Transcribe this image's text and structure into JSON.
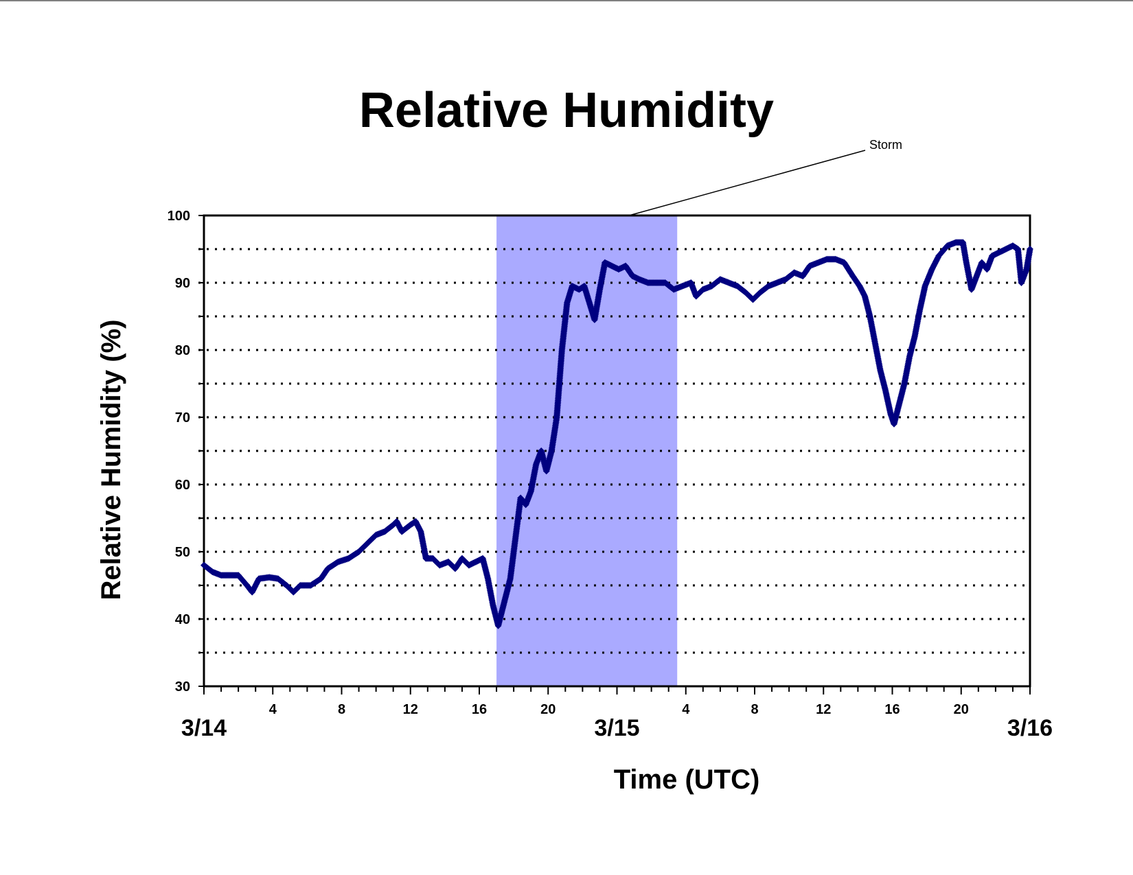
{
  "chart_data": {
    "type": "scatter",
    "title": "Relative Humidity",
    "xlabel": "Time (UTC)",
    "ylabel": "Relative Humidity (%)",
    "ylim": [
      30,
      100
    ],
    "y_ticks": [
      30,
      40,
      50,
      60,
      70,
      80,
      90,
      100
    ],
    "grid": "dotted horizontal lines every 5",
    "x_range_hours": [
      0,
      48
    ],
    "x_hour_labels": [
      {
        "hour": 4,
        "label": "4"
      },
      {
        "hour": 8,
        "label": "8"
      },
      {
        "hour": 12,
        "label": "12"
      },
      {
        "hour": 16,
        "label": "16"
      },
      {
        "hour": 20,
        "label": "20"
      },
      {
        "hour": 28,
        "label": "4"
      },
      {
        "hour": 32,
        "label": "8"
      },
      {
        "hour": 36,
        "label": "12"
      },
      {
        "hour": 40,
        "label": "16"
      },
      {
        "hour": 44,
        "label": "20"
      }
    ],
    "x_date_labels": [
      {
        "hour": 0,
        "label": "3/14"
      },
      {
        "hour": 24,
        "label": "3/15"
      },
      {
        "hour": 48,
        "label": "3/16"
      }
    ],
    "shaded_region": {
      "label": "Storm",
      "x_start_hour": 17,
      "x_end_hour": 27.5,
      "color": "#aaaaff"
    },
    "annotation": {
      "text": "Storm"
    },
    "marker_color": "#000080",
    "series": [
      {
        "points": [
          [
            0,
            48
          ],
          [
            0.5,
            47
          ],
          [
            1,
            46.5
          ],
          [
            1.5,
            46.5
          ],
          [
            2,
            46.5
          ],
          [
            2.5,
            45
          ],
          [
            2.8,
            44
          ],
          [
            3.2,
            46
          ],
          [
            3.8,
            46.2
          ],
          [
            4.3,
            46
          ],
          [
            4.8,
            45
          ],
          [
            5.2,
            44
          ],
          [
            5.6,
            45
          ],
          [
            6.2,
            45
          ],
          [
            6.8,
            46
          ],
          [
            7.2,
            47.5
          ],
          [
            7.8,
            48.5
          ],
          [
            8.4,
            49
          ],
          [
            9,
            50
          ],
          [
            9.6,
            51.5
          ],
          [
            10,
            52.5
          ],
          [
            10.5,
            53
          ],
          [
            11,
            54
          ],
          [
            11.2,
            54.5
          ],
          [
            11.5,
            53
          ],
          [
            12,
            54
          ],
          [
            12.3,
            54.5
          ],
          [
            12.6,
            53
          ],
          [
            12.9,
            49
          ],
          [
            13.3,
            49
          ],
          [
            13.7,
            48
          ],
          [
            14.2,
            48.5
          ],
          [
            14.6,
            47.5
          ],
          [
            15,
            49
          ],
          [
            15.4,
            48
          ],
          [
            15.8,
            48.5
          ],
          [
            16.2,
            49
          ],
          [
            16.5,
            46
          ],
          [
            16.8,
            42
          ],
          [
            17.1,
            39
          ],
          [
            17.4,
            42
          ],
          [
            17.8,
            46
          ],
          [
            18.1,
            52
          ],
          [
            18.4,
            58
          ],
          [
            18.7,
            57
          ],
          [
            19,
            59
          ],
          [
            19.3,
            63
          ],
          [
            19.6,
            65
          ],
          [
            19.9,
            62
          ],
          [
            20.2,
            65
          ],
          [
            20.5,
            70
          ],
          [
            20.8,
            80
          ],
          [
            21.1,
            87
          ],
          [
            21.4,
            89.5
          ],
          [
            21.8,
            89
          ],
          [
            22.1,
            89.5
          ],
          [
            22.4,
            87
          ],
          [
            22.7,
            84.5
          ],
          [
            23,
            89
          ],
          [
            23.3,
            93
          ],
          [
            23.7,
            92.5
          ],
          [
            24.1,
            92
          ],
          [
            24.5,
            92.5
          ],
          [
            24.9,
            91
          ],
          [
            25.3,
            90.5
          ],
          [
            25.8,
            90
          ],
          [
            26.3,
            90
          ],
          [
            26.8,
            90
          ],
          [
            27.3,
            89
          ],
          [
            27.8,
            89.5
          ],
          [
            28.3,
            90
          ],
          [
            28.6,
            88
          ],
          [
            29,
            89
          ],
          [
            29.5,
            89.5
          ],
          [
            30,
            90.5
          ],
          [
            30.5,
            90
          ],
          [
            31,
            89.5
          ],
          [
            31.5,
            88.5
          ],
          [
            31.9,
            87.5
          ],
          [
            32.3,
            88.5
          ],
          [
            32.8,
            89.5
          ],
          [
            33.3,
            90
          ],
          [
            33.8,
            90.5
          ],
          [
            34.3,
            91.5
          ],
          [
            34.8,
            91
          ],
          [
            35.2,
            92.5
          ],
          [
            35.7,
            93
          ],
          [
            36.2,
            93.5
          ],
          [
            36.7,
            93.5
          ],
          [
            37.2,
            93
          ],
          [
            37.7,
            91
          ],
          [
            38.1,
            89.5
          ],
          [
            38.4,
            88
          ],
          [
            38.7,
            85
          ],
          [
            39,
            81
          ],
          [
            39.3,
            77
          ],
          [
            39.6,
            74
          ],
          [
            39.9,
            70.5
          ],
          [
            40.1,
            69
          ],
          [
            40.4,
            72
          ],
          [
            40.7,
            75
          ],
          [
            41,
            79
          ],
          [
            41.3,
            82
          ],
          [
            41.6,
            86
          ],
          [
            41.9,
            89.5
          ],
          [
            42.3,
            92
          ],
          [
            42.7,
            94
          ],
          [
            43.2,
            95.5
          ],
          [
            43.7,
            96
          ],
          [
            44.1,
            96
          ],
          [
            44.3,
            93
          ],
          [
            44.6,
            89
          ],
          [
            44.9,
            91
          ],
          [
            45.2,
            93
          ],
          [
            45.5,
            92
          ],
          [
            45.8,
            94
          ],
          [
            46.2,
            94.5
          ],
          [
            46.6,
            95
          ],
          [
            47,
            95.5
          ],
          [
            47.3,
            95
          ],
          [
            47.5,
            90
          ],
          [
            47.8,
            92
          ],
          [
            48,
            95
          ]
        ]
      }
    ]
  }
}
